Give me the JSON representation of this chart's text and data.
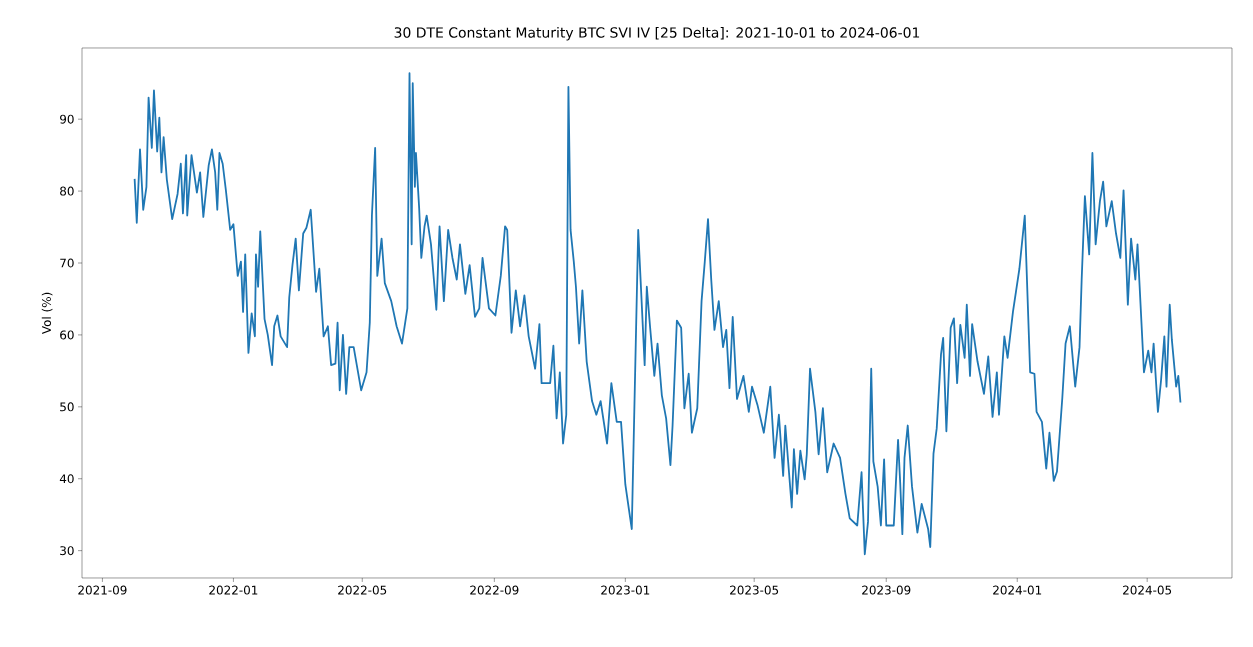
{
  "chart_data": {
    "type": "line",
    "title": "30 DTE Constant Maturity BTC SVI IV [25 Delta]: 2021-10-01 to 2024-06-01",
    "ylabel": "Vol (%)",
    "xlim": [
      "2021-08-13",
      "2024-07-19"
    ],
    "ylim": [
      26.2,
      99.9
    ],
    "xticks": [
      "2021-09",
      "2022-01",
      "2022-05",
      "2022-09",
      "2023-01",
      "2023-05",
      "2023-09",
      "2024-01",
      "2024-05"
    ],
    "yticks": [
      30,
      40,
      50,
      60,
      70,
      80,
      90
    ],
    "series": [
      {
        "color": "#1f77b4",
        "x": [
          "2021-10-01",
          "2021-10-03",
          "2021-10-06",
          "2021-10-09",
          "2021-10-12",
          "2021-10-14",
          "2021-10-17",
          "2021-10-19",
          "2021-10-22",
          "2021-10-24",
          "2021-10-26",
          "2021-10-28",
          "2021-10-31",
          "2021-11-05",
          "2021-11-10",
          "2021-11-13",
          "2021-11-15",
          "2021-11-18",
          "2021-11-19",
          "2021-11-23",
          "2021-11-28",
          "2021-12-01",
          "2021-12-04",
          "2021-12-09",
          "2021-12-12",
          "2021-12-15",
          "2021-12-17",
          "2021-12-19",
          "2021-12-22",
          "2021-12-25",
          "2021-12-29",
          "2022-01-01",
          "2022-01-05",
          "2022-01-08",
          "2022-01-10",
          "2022-01-12",
          "2022-01-15",
          "2022-01-18",
          "2022-01-21",
          "2022-01-22",
          "2022-01-24",
          "2022-01-26",
          "2022-01-30",
          "2022-02-02",
          "2022-02-06",
          "2022-02-08",
          "2022-02-11",
          "2022-02-14",
          "2022-02-20",
          "2022-02-22",
          "2022-02-25",
          "2022-02-28",
          "2022-03-03",
          "2022-03-07",
          "2022-03-10",
          "2022-03-14",
          "2022-03-19",
          "2022-03-22",
          "2022-03-26",
          "2022-03-30",
          "2022-04-02",
          "2022-04-06",
          "2022-04-08",
          "2022-04-10",
          "2022-04-13",
          "2022-04-16",
          "2022-04-19",
          "2022-04-23",
          "2022-04-30",
          "2022-05-05",
          "2022-05-08",
          "2022-05-10",
          "2022-05-13",
          "2022-05-15",
          "2022-05-19",
          "2022-05-22",
          "2022-05-28",
          "2022-06-02",
          "2022-06-07",
          "2022-06-12",
          "2022-06-14",
          "2022-06-16",
          "2022-06-17",
          "2022-06-19",
          "2022-06-20",
          "2022-06-23",
          "2022-06-25",
          "2022-06-28",
          "2022-06-30",
          "2022-07-04",
          "2022-07-09",
          "2022-07-12",
          "2022-07-16",
          "2022-07-20",
          "2022-07-24",
          "2022-07-28",
          "2022-07-31",
          "2022-08-05",
          "2022-08-09",
          "2022-08-14",
          "2022-08-18",
          "2022-08-21",
          "2022-08-27",
          "2022-09-02",
          "2022-09-07",
          "2022-09-11",
          "2022-09-13",
          "2022-09-17",
          "2022-09-21",
          "2022-09-25",
          "2022-09-29",
          "2022-10-03",
          "2022-10-09",
          "2022-10-13",
          "2022-10-15",
          "2022-10-23",
          "2022-10-26",
          "2022-10-29",
          "2022-11-01",
          "2022-11-04",
          "2022-11-07",
          "2022-11-09",
          "2022-11-11",
          "2022-11-14",
          "2022-11-16",
          "2022-11-19",
          "2022-11-22",
          "2022-11-26",
          "2022-12-01",
          "2022-12-05",
          "2022-12-09",
          "2022-12-15",
          "2022-12-19",
          "2022-12-24",
          "2022-12-28",
          "2023-01-01",
          "2023-01-07",
          "2023-01-13",
          "2023-01-19",
          "2023-01-21",
          "2023-01-24",
          "2023-01-28",
          "2023-01-31",
          "2023-02-04",
          "2023-02-08",
          "2023-02-12",
          "2023-02-14",
          "2023-02-18",
          "2023-02-22",
          "2023-02-25",
          "2023-03-01",
          "2023-03-04",
          "2023-03-09",
          "2023-03-13",
          "2023-03-16",
          "2023-03-19",
          "2023-03-22",
          "2023-03-25",
          "2023-03-29",
          "2023-04-02",
          "2023-04-05",
          "2023-04-08",
          "2023-04-11",
          "2023-04-15",
          "2023-04-21",
          "2023-04-26",
          "2023-04-29",
          "2023-05-04",
          "2023-05-10",
          "2023-05-16",
          "2023-05-20",
          "2023-05-24",
          "2023-05-28",
          "2023-05-30",
          "2023-06-05",
          "2023-06-07",
          "2023-06-10",
          "2023-06-13",
          "2023-06-17",
          "2023-06-19",
          "2023-06-22",
          "2023-06-27",
          "2023-06-30",
          "2023-07-04",
          "2023-07-08",
          "2023-07-14",
          "2023-07-20",
          "2023-07-25",
          "2023-07-29",
          "2023-08-05",
          "2023-08-09",
          "2023-08-12",
          "2023-08-15",
          "2023-08-18",
          "2023-08-20",
          "2023-08-24",
          "2023-08-27",
          "2023-08-30",
          "2023-09-01",
          "2023-09-08",
          "2023-09-12",
          "2023-09-14",
          "2023-09-16",
          "2023-09-18",
          "2023-09-21",
          "2023-09-25",
          "2023-09-30",
          "2023-10-04",
          "2023-10-10",
          "2023-10-12",
          "2023-10-15",
          "2023-10-18",
          "2023-10-22",
          "2023-10-24",
          "2023-10-27",
          "2023-10-31",
          "2023-11-03",
          "2023-11-06",
          "2023-11-09",
          "2023-11-13",
          "2023-11-15",
          "2023-11-18",
          "2023-11-20",
          "2023-11-25",
          "2023-12-01",
          "2023-12-05",
          "2023-12-09",
          "2023-12-13",
          "2023-12-15",
          "2023-12-20",
          "2023-12-23",
          "2023-12-28",
          "2024-01-03",
          "2024-01-08",
          "2024-01-13",
          "2024-01-17",
          "2024-01-19",
          "2024-01-24",
          "2024-01-28",
          "2024-01-31",
          "2024-02-04",
          "2024-02-07",
          "2024-02-12",
          "2024-02-15",
          "2024-02-19",
          "2024-02-24",
          "2024-02-28",
          "2024-03-01",
          "2024-03-04",
          "2024-03-08",
          "2024-03-11",
          "2024-03-14",
          "2024-03-18",
          "2024-03-21",
          "2024-03-24",
          "2024-03-29",
          "2024-04-02",
          "2024-04-06",
          "2024-04-09",
          "2024-04-13",
          "2024-04-16",
          "2024-04-20",
          "2024-04-22",
          "2024-04-25",
          "2024-04-28",
          "2024-05-02",
          "2024-05-05",
          "2024-05-07",
          "2024-05-11",
          "2024-05-14",
          "2024-05-17",
          "2024-05-19",
          "2024-05-22",
          "2024-05-24",
          "2024-05-28",
          "2024-05-30",
          "2024-06-01"
        ],
        "values": [
          81.7,
          75.6,
          85.8,
          77.4,
          80.6,
          93,
          86,
          94,
          85.5,
          90.2,
          82.6,
          87.5,
          81.6,
          76.1,
          79.6,
          83.8,
          76.9,
          85,
          76.6,
          85,
          79.8,
          82.6,
          76.4,
          83.6,
          85.8,
          82.6,
          77.4,
          85.3,
          83.8,
          80.1,
          74.6,
          75.4,
          68.2,
          70.2,
          63.2,
          71.2,
          57.5,
          63,
          59.8,
          71.2,
          66.7,
          74.4,
          62.2,
          60,
          55.8,
          61.2,
          62.7,
          59.8,
          58.3,
          65.2,
          69.7,
          73.4,
          66.2,
          74.1,
          74.9,
          77.4,
          66,
          69.2,
          59.8,
          61.2,
          55.8,
          56,
          61.7,
          52.3,
          60,
          51.8,
          58.3,
          58.3,
          52.3,
          54.8,
          61.7,
          76.6,
          86,
          68.2,
          73.4,
          67.2,
          64.7,
          61.2,
          58.8,
          63.7,
          96.4,
          72.6,
          95,
          80.6,
          85.3,
          77.6,
          70.7,
          75.1,
          76.6,
          72.6,
          63.5,
          75.1,
          64.7,
          74.6,
          70.7,
          67.7,
          72.6,
          65.7,
          69.7,
          62.5,
          63.7,
          70.7,
          63.7,
          62.7,
          68.2,
          75.1,
          74.6,
          60.3,
          66.2,
          61.2,
          65.5,
          59.8,
          55.3,
          61.5,
          53.3,
          53.3,
          58.5,
          48.4,
          54.8,
          44.9,
          48.9,
          94.5,
          74.6,
          70.2,
          66.7,
          58.8,
          66.2,
          56.3,
          50.8,
          48.9,
          50.8,
          44.9,
          53.3,
          47.9,
          47.9,
          39.2,
          33,
          74.6,
          55.8,
          66.7,
          61.2,
          54.3,
          58.8,
          51.6,
          48.4,
          41.9,
          47.4,
          62,
          61,
          49.8,
          54.6,
          46.4,
          49.8,
          64.7,
          70.2,
          76.1,
          67.7,
          60.7,
          64.7,
          58.3,
          60.7,
          52.6,
          62.5,
          51.1,
          54.3,
          49.3,
          52.8,
          50.3,
          46.4,
          52.8,
          42.9,
          48.9,
          40.4,
          47.4,
          36,
          44.1,
          37.9,
          43.9,
          39.9,
          43.4,
          55.3,
          49.3,
          43.4,
          49.8,
          40.9,
          44.9,
          42.9,
          37.9,
          34.5,
          33.5,
          40.9,
          29.5,
          34,
          55.3,
          42.4,
          38.9,
          33.5,
          42.7,
          33.5,
          33.5,
          45.4,
          39.4,
          32.3,
          42.9,
          47.4,
          38.9,
          32.5,
          36.5,
          33,
          30.5,
          43.5,
          47,
          57.3,
          59.6,
          46.6,
          61,
          62.3,
          53.3,
          61.4,
          56.8,
          64.2,
          54.3,
          61.5,
          56.3,
          51.8,
          57,
          48.6,
          54.8,
          48.9,
          59.8,
          56.8,
          63.2,
          69.2,
          76.6,
          54.8,
          54.6,
          49.3,
          47.9,
          41.4,
          46.4,
          39.7,
          41,
          51.3,
          58.8,
          61.2,
          52.8,
          58.3,
          67.7,
          79.3,
          71.2,
          85.3,
          72.6,
          78.6,
          81.3,
          75.1,
          78.6,
          74.1,
          70.7,
          80.1,
          64.2,
          73.4,
          67.7,
          72.6,
          63.7,
          54.8,
          57.8,
          54.8,
          58.8,
          49.3,
          53.8,
          59.8,
          52.8,
          64.2,
          59.3,
          52.8,
          54.3,
          50.6
        ]
      }
    ]
  }
}
